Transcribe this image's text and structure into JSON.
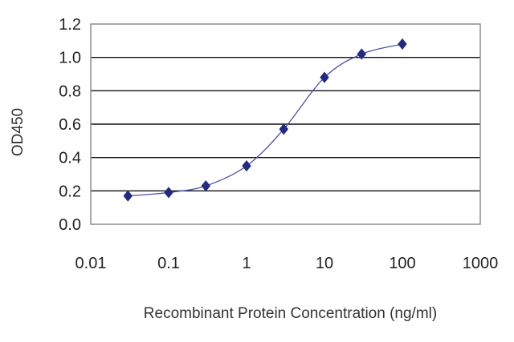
{
  "chart_data": {
    "type": "scatter",
    "xscale": "log",
    "xlabel": "Recombinant Protein Concentration (ng/ml)",
    "ylabel": "OD450",
    "xlim": [
      0.01,
      1000
    ],
    "ylim": [
      0.0,
      1.2
    ],
    "x_ticks": [
      "0.01",
      "0.1",
      "1",
      "10",
      "100",
      "1000"
    ],
    "y_ticks": [
      "0.0",
      "0.2",
      "0.4",
      "0.6",
      "0.8",
      "1.0",
      "1.2"
    ],
    "grid": "horizontal",
    "series": [
      {
        "x": [
          0.03,
          0.1,
          0.3,
          1,
          3,
          10,
          30,
          100
        ],
        "y": [
          0.17,
          0.19,
          0.23,
          0.35,
          0.57,
          0.88,
          1.02,
          1.08
        ]
      }
    ],
    "colors": {
      "marker": "#232a7f",
      "curve": "#4a4fa8",
      "grid": "#111111",
      "plot_border": "#8c8c8c"
    }
  }
}
